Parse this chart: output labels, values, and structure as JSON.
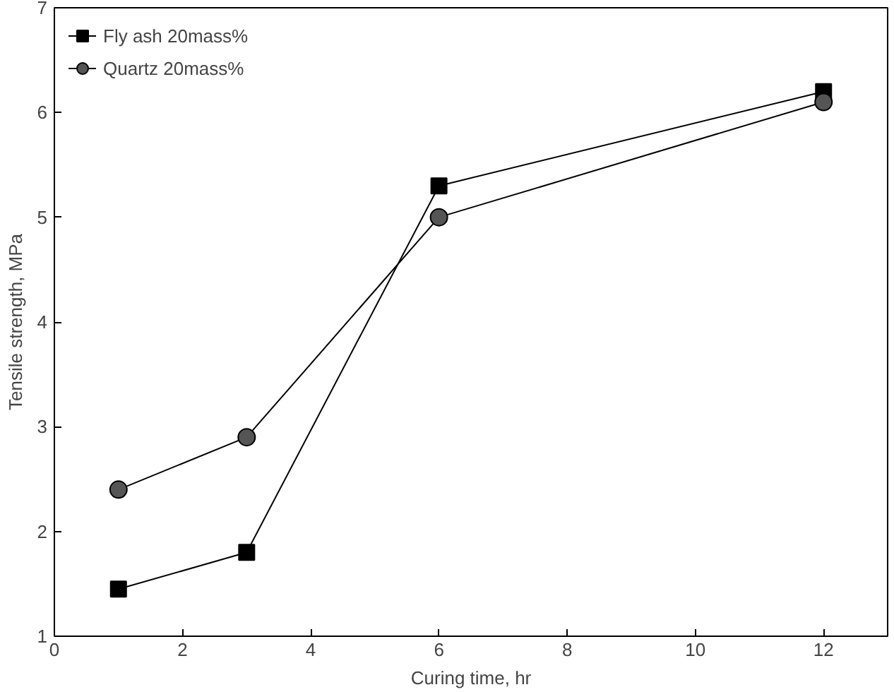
{
  "chart_data": {
    "type": "line",
    "xlabel": "Curing time, hr",
    "ylabel": "Tensile strength, MPa",
    "x": [
      1,
      3,
      6,
      12
    ],
    "series": [
      {
        "name": "Fly ash 20mass%",
        "color": "#000000",
        "values": [
          1.45,
          1.8,
          5.3,
          6.2
        ],
        "marker": "square"
      },
      {
        "name": "Quartz 20mass%",
        "color": "#000000",
        "values": [
          2.4,
          2.9,
          5.0,
          6.1
        ],
        "marker": "circle"
      }
    ],
    "xlim": [
      0,
      13
    ],
    "ylim": [
      1,
      7
    ],
    "xticks": [
      0,
      2,
      4,
      6,
      8,
      10,
      12
    ],
    "yticks": [
      1,
      2,
      3,
      4,
      5,
      6,
      7
    ],
    "grid": false,
    "legend": "top left",
    "line_style": "solid"
  }
}
